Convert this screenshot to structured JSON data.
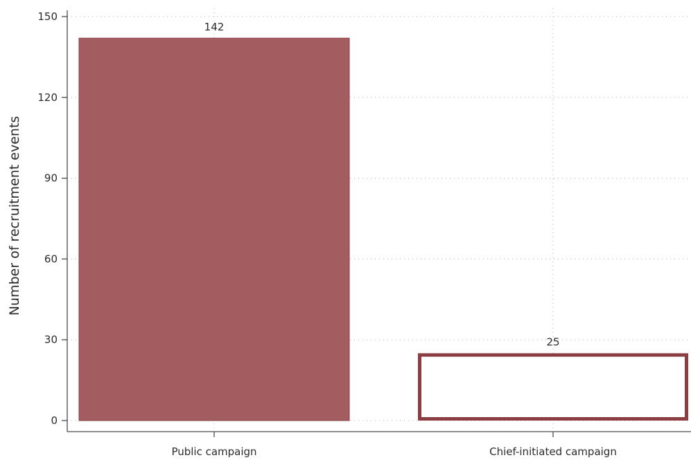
{
  "chart_data": {
    "type": "bar",
    "title": "",
    "xlabel": "",
    "ylabel": "Number of recruitment events",
    "categories": [
      "Public campaign",
      "Chief-initiated campaign"
    ],
    "values": [
      142,
      25
    ],
    "data_labels": [
      "142",
      "25"
    ],
    "ylim": [
      0,
      150
    ],
    "yticks": [
      0,
      30,
      60,
      90,
      120,
      150
    ],
    "ytick_labels": [
      "0",
      "30",
      "60",
      "90",
      "120",
      "150"
    ],
    "grid": true,
    "bar_styles": [
      {
        "fill": "#a35d60",
        "stroke": "#8c3d42",
        "hollow": false
      },
      {
        "fill": "#ffffff",
        "stroke": "#8c3d42",
        "hollow": true
      }
    ]
  }
}
